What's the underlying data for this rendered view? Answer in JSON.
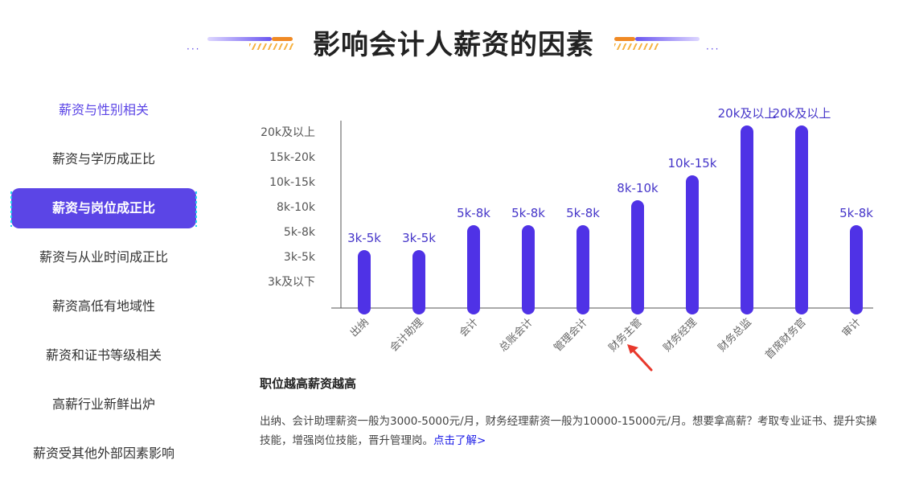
{
  "title": "影响会计人薪资的因素",
  "sidebar": {
    "items": [
      {
        "label": "薪资与性别相关",
        "state": "highlight"
      },
      {
        "label": "薪资与学历成正比",
        "state": "normal"
      },
      {
        "label": "薪资与岗位成正比",
        "state": "active"
      },
      {
        "label": "薪资与从业时间成正比",
        "state": "normal"
      },
      {
        "label": "薪资高低有地域性",
        "state": "normal"
      },
      {
        "label": "薪资和证书等级相关",
        "state": "normal"
      },
      {
        "label": "高薪行业新鲜出炉",
        "state": "normal"
      },
      {
        "label": "薪资受其他外部因素影响",
        "state": "normal"
      }
    ]
  },
  "section": {
    "title": "职位越高薪资越高",
    "description": "出纳、会计助理薪资一般为3000-5000元/月，财务经理薪资一般为10000-15000元/月。想要拿高薪？考取专业证书、提升实操技能，增强岗位技能，晋升管理岗。",
    "link_label": "点击了解>"
  },
  "colors": {
    "accent": "#5b45e6",
    "bar": "#4f32e6",
    "arrow": "#e8382c",
    "orange": "#f08a24"
  },
  "chart_data": {
    "type": "bar",
    "y_categories": [
      "3k及以下",
      "3k-5k",
      "5k-8k",
      "8k-10k",
      "10k-15k",
      "15k-20k",
      "20k及以上"
    ],
    "categories": [
      "出纳",
      "会计助理",
      "会计",
      "总账会计",
      "管理会计",
      "财务主管",
      "财务经理",
      "财务总监",
      "首席财务官",
      "审计"
    ],
    "values": [
      2,
      2,
      3,
      3,
      3,
      4,
      5,
      7,
      7,
      3
    ],
    "value_labels": [
      "3k-5k",
      "3k-5k",
      "5k-8k",
      "5k-8k",
      "5k-8k",
      "8k-10k",
      "10k-15k",
      "20k及以上",
      "20k及以上",
      "5k-8k"
    ],
    "highlight_category": "财务主管",
    "grid": false,
    "legend": "none"
  }
}
